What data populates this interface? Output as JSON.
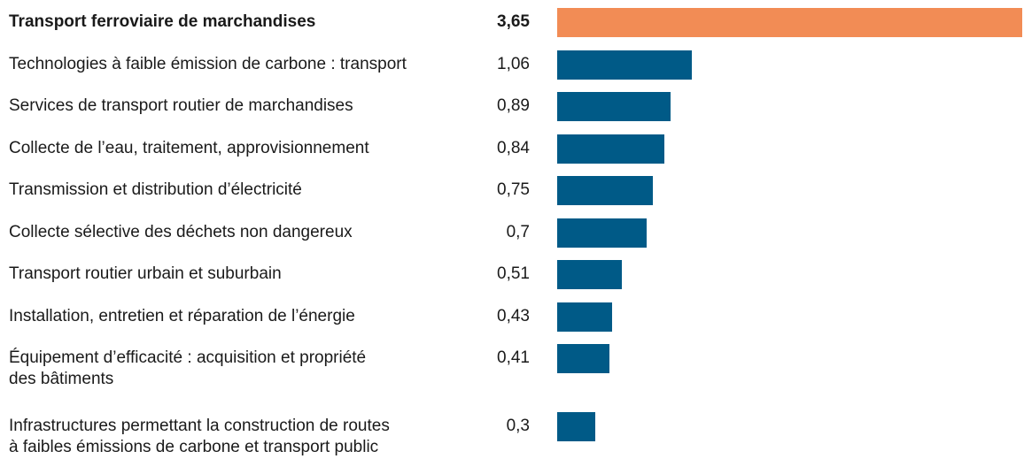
{
  "chart_data": {
    "type": "bar",
    "orientation": "horizontal",
    "categories": [
      "Transport ferroviaire de marchandises",
      "Technologies à faible émission de carbone : transport",
      "Services de transport routier de marchandises",
      "Collecte de l’eau, traitement, approvisionnement",
      "Transmission et distribution d’électricité",
      "Collecte sélective des déchets non dangereux",
      "Transport routier urbain et suburbain",
      "Installation, entretien et réparation de l’énergie",
      "Équipement d’efficacité : acquisition et propriété\ndes bâtiments",
      "Infrastructures permettant la construction de routes\nà faibles émissions de carbone et transport public"
    ],
    "values": [
      3.65,
      1.06,
      0.89,
      0.84,
      0.75,
      0.7,
      0.51,
      0.43,
      0.41,
      0.3
    ],
    "value_labels": [
      "3,65",
      "1,06",
      "0,89",
      "0,84",
      "0,75",
      "0,7",
      "0,51",
      "0,43",
      "0,41",
      "0,3"
    ],
    "color": "#005a87",
    "highlight_color": "#f28c55",
    "highlight_index": 0
  }
}
